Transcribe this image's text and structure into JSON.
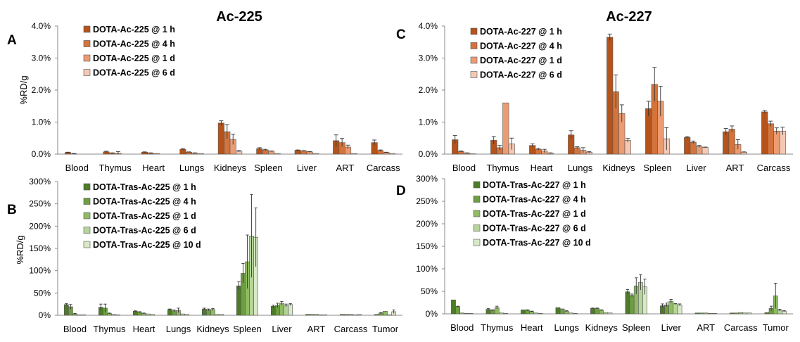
{
  "chart_data": [
    {
      "panel": "A",
      "title": "Ac-225",
      "type": "bar",
      "ylabel": "%RD/g",
      "ylim": [
        0,
        4.0
      ],
      "ytick_labels": [
        "0.0%",
        "1.0%",
        "2.0%",
        "3.0%",
        "4.0%"
      ],
      "categories": [
        "Blood",
        "Thymus",
        "Heart",
        "Lungs",
        "Kidneys",
        "Spleen",
        "Liver",
        "ART",
        "Carcass"
      ],
      "series": [
        {
          "name": "DOTA-Ac-225 @ 1 h",
          "color": "#b5531a",
          "values": [
            0.05,
            0.07,
            0.06,
            0.15,
            0.97,
            0.17,
            0.12,
            0.42,
            0.36
          ],
          "errors": [
            0.01,
            0.02,
            0.01,
            0.02,
            0.07,
            0.03,
            0.01,
            0.18,
            0.08
          ]
        },
        {
          "name": "DOTA-Ac-225 @ 4 h",
          "color": "#d4743c",
          "values": [
            0.01,
            0.03,
            0.03,
            0.06,
            0.7,
            0.13,
            0.1,
            0.36,
            0.11
          ],
          "errors": [
            0.01,
            0.01,
            0.01,
            0.01,
            0.22,
            0.02,
            0.01,
            0.13,
            0.02
          ]
        },
        {
          "name": "DOTA-Ac-225 @ 1 d",
          "color": "#ec9c72",
          "values": [
            0.0,
            0.03,
            0.02,
            0.03,
            0.46,
            0.09,
            0.07,
            0.22,
            0.05
          ],
          "errors": [
            0.0,
            0.05,
            0.0,
            0.01,
            0.16,
            0.01,
            0.01,
            0.06,
            0.01
          ]
        },
        {
          "name": "DOTA-Ac-225 @ 6 d",
          "color": "#f6c8b4",
          "values": [
            0.0,
            0.0,
            0.0,
            0.02,
            0.09,
            0.02,
            0.02,
            0.02,
            0.02
          ],
          "errors": [
            0.0,
            0.0,
            0.0,
            0.0,
            0.02,
            0.0,
            0.0,
            0.0,
            0.0
          ]
        }
      ]
    },
    {
      "panel": "C",
      "title": "Ac-227",
      "type": "bar",
      "ylabel": "",
      "ylim": [
        0,
        4.0
      ],
      "ytick_labels": [
        "0.0%",
        "1.0%",
        "2.0%",
        "3.0%",
        "4.0%"
      ],
      "categories": [
        "Blood",
        "Thymus",
        "Heart",
        "Lungs",
        "Kidneys",
        "Spleen",
        "Liver",
        "ART",
        "Carcass"
      ],
      "series": [
        {
          "name": "DOTA-Ac-227 @ 1 h",
          "color": "#b5531a",
          "values": [
            0.45,
            0.43,
            0.27,
            0.6,
            3.65,
            1.42,
            0.52,
            0.7,
            1.32
          ],
          "errors": [
            0.13,
            0.12,
            0.05,
            0.13,
            0.1,
            0.23,
            0.03,
            0.1,
            0.04
          ]
        },
        {
          "name": "DOTA-Ac-227 @ 4 h",
          "color": "#d4743c",
          "values": [
            0.08,
            0.2,
            0.15,
            0.2,
            1.95,
            2.18,
            0.37,
            0.78,
            0.95
          ],
          "errors": [
            0.02,
            0.07,
            0.03,
            0.03,
            0.52,
            0.53,
            0.04,
            0.1,
            0.08
          ]
        },
        {
          "name": "DOTA-Ac-227 @ 1 d",
          "color": "#ec9c72",
          "values": [
            0.03,
            1.6,
            0.1,
            0.12,
            1.27,
            1.65,
            0.24,
            0.3,
            0.72
          ],
          "errors": [
            0.01,
            0.0,
            0.05,
            0.08,
            0.27,
            0.47,
            0.03,
            0.15,
            0.1
          ]
        },
        {
          "name": "DOTA-Ac-227 @ 6 d",
          "color": "#f6c8b4",
          "values": [
            0.01,
            0.32,
            0.03,
            0.06,
            0.43,
            0.48,
            0.21,
            0.06,
            0.72
          ],
          "errors": [
            0.0,
            0.18,
            0.01,
            0.02,
            0.06,
            0.35,
            0.01,
            0.01,
            0.12
          ]
        }
      ]
    },
    {
      "panel": "B",
      "title": "",
      "type": "bar",
      "ylabel": "%RD/g",
      "ylim": [
        0,
        300
      ],
      "ytick_labels": [
        "0%",
        "50%",
        "100%",
        "150%",
        "200%",
        "250%",
        "300%"
      ],
      "categories": [
        "Blood",
        "Thymus",
        "Heart",
        "Lungs",
        "Kidneys",
        "Spleen",
        "Liver",
        "ART",
        "Carcass",
        "Tumor"
      ],
      "series": [
        {
          "name": "DOTA-Tras-Ac-225 @ 1 h",
          "color": "#4e7b2a",
          "values": [
            24,
            18,
            9,
            13,
            14,
            66,
            20,
            2,
            2,
            2
          ],
          "errors": [
            2,
            7,
            1,
            1,
            2,
            9,
            3,
            0,
            0,
            0
          ]
        },
        {
          "name": "DOTA-Tras-Ac-225 @ 4 h",
          "color": "#6e9e42",
          "values": [
            19,
            16,
            7,
            10,
            12,
            94,
            22,
            2,
            2,
            5
          ],
          "errors": [
            5,
            9,
            1,
            2,
            2,
            22,
            5,
            0,
            0,
            1
          ]
        },
        {
          "name": "DOTA-Tras-Ac-225 @ 1 d",
          "color": "#8fbb64",
          "values": [
            3,
            4,
            4,
            11,
            13,
            120,
            27,
            2,
            2,
            9
          ],
          "errors": [
            1,
            1,
            1,
            5,
            2,
            60,
            4,
            0,
            0,
            0
          ]
        },
        {
          "name": "DOTA-Tras-Ac-225 @ 6 d",
          "color": "#b6d59a",
          "values": [
            1,
            2,
            3,
            3,
            2,
            178,
            22,
            1,
            1,
            1
          ],
          "errors": [
            0,
            0,
            0,
            0,
            0,
            93,
            3,
            0,
            0,
            0
          ]
        },
        {
          "name": "DOTA-Tras-Ac-225 @ 10 d",
          "color": "#d7e9c6",
          "values": [
            1,
            1,
            2,
            2,
            2,
            175,
            24,
            1,
            2,
            8
          ],
          "errors": [
            0,
            0,
            0,
            0,
            0,
            66,
            2,
            0,
            0,
            4
          ]
        }
      ]
    },
    {
      "panel": "D",
      "title": "",
      "type": "bar",
      "ylabel": "",
      "ylim": [
        0,
        300
      ],
      "ytick_labels": [
        "0%",
        "50%",
        "100%",
        "150%",
        "200%",
        "250%",
        "300%"
      ],
      "categories": [
        "Blood",
        "Thymus",
        "Heart",
        "Lungs",
        "Kidneys",
        "Spleen",
        "Liver",
        "ART",
        "Carcass",
        "Tumor"
      ],
      "series": [
        {
          "name": "DOTA-Tras-Ac-227 @ 1 h",
          "color": "#4e7b2a",
          "values": [
            31,
            10,
            9,
            14,
            12,
            49,
            18,
            2,
            2,
            3
          ],
          "errors": [
            0,
            2,
            0,
            0,
            1,
            5,
            4,
            0,
            0,
            0
          ]
        },
        {
          "name": "DOTA-Tras-Ac-227 @ 4 h",
          "color": "#6e9e42",
          "values": [
            16,
            8,
            8,
            11,
            12,
            41,
            20,
            2,
            2,
            12
          ],
          "errors": [
            1,
            1,
            1,
            0,
            1,
            3,
            4,
            0,
            0,
            5
          ]
        },
        {
          "name": "DOTA-Tras-Ac-227 @ 1 d",
          "color": "#8fbb64",
          "values": [
            2,
            14,
            5,
            6,
            8,
            62,
            28,
            2,
            3,
            40
          ],
          "errors": [
            0,
            3,
            1,
            1,
            1,
            18,
            4,
            0,
            0,
            28
          ]
        },
        {
          "name": "DOTA-Tras-Ac-227 @ 6 d",
          "color": "#b6d59a",
          "values": [
            1,
            2,
            2,
            2,
            3,
            70,
            22,
            1,
            2,
            8
          ],
          "errors": [
            0,
            0,
            0,
            0,
            0,
            17,
            1,
            0,
            0,
            2
          ]
        },
        {
          "name": "DOTA-Tras-Ac-227 @ 10 d",
          "color": "#d7e9c6",
          "values": [
            1,
            1,
            1,
            1,
            2,
            60,
            20,
            1,
            2,
            6
          ],
          "errors": [
            0,
            0,
            0,
            0,
            0,
            17,
            2,
            0,
            0,
            1
          ]
        }
      ]
    }
  ]
}
